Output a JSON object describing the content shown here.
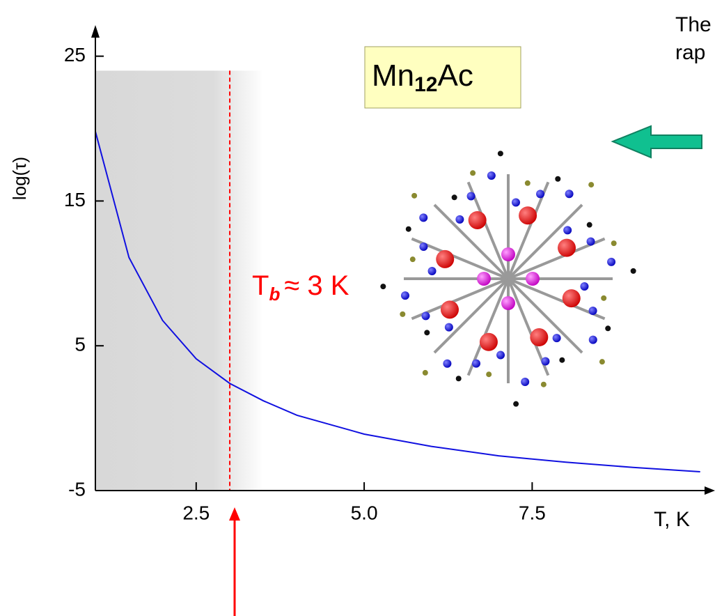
{
  "chart_data": {
    "type": "line",
    "x_label": "T, K",
    "y_label": "log(τ)",
    "x": [
      1,
      1.5,
      2,
      2.5,
      3,
      3.5,
      4,
      5,
      6,
      7,
      8,
      9,
      10
    ],
    "series": [
      {
        "name": "log(τ)",
        "color": "#1010e0",
        "values": [
          19.8,
          11.1,
          6.75,
          4.1,
          2.4,
          1.2,
          0.2,
          -1.1,
          -1.95,
          -2.6,
          -3.04,
          -3.4,
          -3.7
        ]
      }
    ],
    "xlim": [
      1,
      10.2
    ],
    "ylim": [
      -5,
      27.1
    ],
    "xticks": [
      2.5,
      {
        "value": 5,
        "label": "5.0"
      },
      7.5
    ],
    "yticks": [
      -5,
      5,
      15,
      25
    ],
    "marker_line": {
      "x": 3,
      "color": "#ff0000"
    },
    "shaded_region": {
      "x": [
        1,
        3.5
      ],
      "y_top": 24
    },
    "annotation": {
      "main": "T",
      "sub": "b",
      "rest": "≈ 3 K"
    },
    "label_box": {
      "main": "Mn",
      "sub": "12",
      "rest": "Ac"
    },
    "side_text": [
      "The",
      "rap"
    ]
  }
}
